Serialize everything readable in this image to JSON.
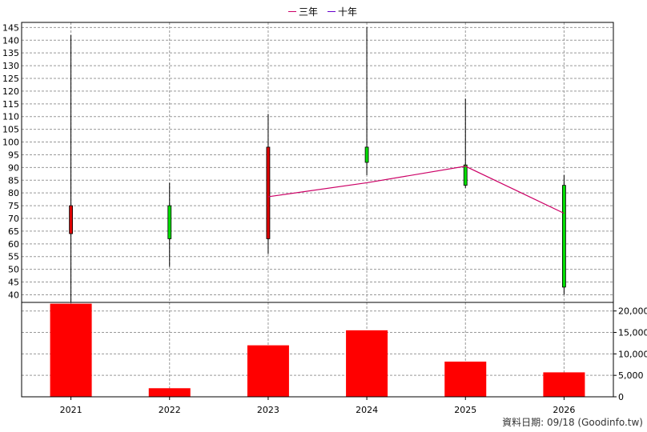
{
  "legend": {
    "items": [
      {
        "label": "三年",
        "color": "#cc0066"
      },
      {
        "label": "十年",
        "color": "#6600cc"
      }
    ]
  },
  "source_text": "資料日期: 09/18  (Goodinfo.tw)",
  "colors": {
    "up_candle": "#00dd00",
    "down_candle": "#dd0000",
    "volume_bar": "#ff0000",
    "grid": "#999999",
    "axis": "#000000"
  },
  "chart_data": [
    {
      "type": "candlestick",
      "title": "",
      "categories": [
        "2021",
        "2022",
        "2023",
        "2024",
        "2025",
        "2026"
      ],
      "ylim": [
        37,
        147
      ],
      "yticks": [
        40,
        45,
        50,
        55,
        60,
        65,
        70,
        75,
        80,
        85,
        90,
        95,
        100,
        105,
        110,
        115,
        120,
        125,
        130,
        135,
        140,
        145
      ],
      "grid": true,
      "ohlc": [
        {
          "x": "2021",
          "open": 75,
          "high": 142,
          "low": 37,
          "close": 64
        },
        {
          "x": "2022",
          "open": 62,
          "high": 84,
          "low": 51,
          "close": 75
        },
        {
          "x": "2023",
          "open": 98,
          "high": 111,
          "low": 56,
          "close": 62
        },
        {
          "x": "2024",
          "open": 92,
          "high": 145,
          "low": 87,
          "close": 98
        },
        {
          "x": "2025",
          "open": 83,
          "high": 117,
          "low": 82,
          "close": 91
        },
        {
          "x": "2026",
          "open": 43,
          "high": 87,
          "low": 40,
          "close": 83
        }
      ],
      "series": [
        {
          "name": "三年",
          "color": "#cc0066",
          "points": [
            {
              "x": "2023",
              "y": 78.5
            },
            {
              "x": "2024",
              "y": 84
            },
            {
              "x": "2025",
              "y": 90.5
            },
            {
              "x": "2026",
              "y": 72
            }
          ]
        },
        {
          "name": "十年",
          "color": "#6600cc",
          "points": []
        }
      ]
    },
    {
      "type": "bar",
      "categories": [
        "2021",
        "2022",
        "2023",
        "2024",
        "2025",
        "2026"
      ],
      "values": [
        21700,
        2000,
        12000,
        15500,
        8200,
        5700
      ],
      "ylim": [
        0,
        22000
      ],
      "yticks": [
        0,
        5000,
        10000,
        15000,
        20000
      ],
      "ytick_labels": [
        "0",
        "5,000",
        "10,000",
        "15,000",
        "20,000"
      ],
      "grid": true
    }
  ]
}
